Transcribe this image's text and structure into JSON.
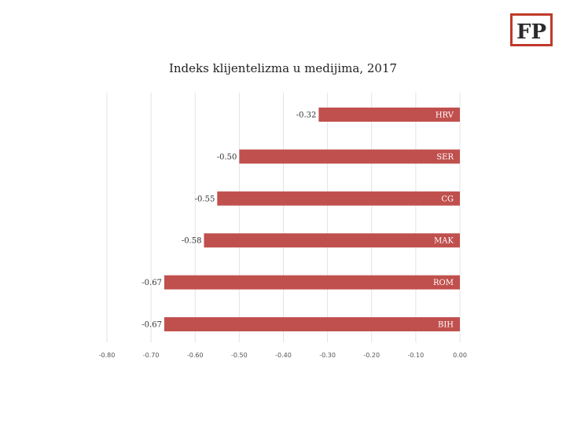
{
  "logo": {
    "text": "FP",
    "color": "#c0392b"
  },
  "chart_data": {
    "type": "bar",
    "orientation": "horizontal",
    "title": "Indeks klijentelizma u medijima, 2017",
    "categories": [
      "HRV",
      "SER",
      "CG",
      "MAK",
      "ROM",
      "BIH"
    ],
    "values": [
      -0.32,
      -0.5,
      -0.55,
      -0.58,
      -0.67,
      -0.67
    ],
    "value_labels": [
      "-0.32",
      "-0.50",
      "-0.55",
      "-0.58",
      "-0.67",
      "-0.67"
    ],
    "xlim": [
      -0.8,
      0.0
    ],
    "xticks": [
      -0.8,
      -0.7,
      -0.6,
      -0.5,
      -0.4,
      -0.3,
      -0.2,
      -0.1,
      0.0
    ],
    "xtick_labels": [
      "-0.80",
      "-0.70",
      "-0.60",
      "-0.50",
      "-0.40",
      "-0.30",
      "-0.20",
      "-0.10",
      "0.00"
    ],
    "xlabel": "",
    "ylabel": "",
    "grid": true,
    "legend": "none",
    "bar_color": "#c0504d"
  }
}
